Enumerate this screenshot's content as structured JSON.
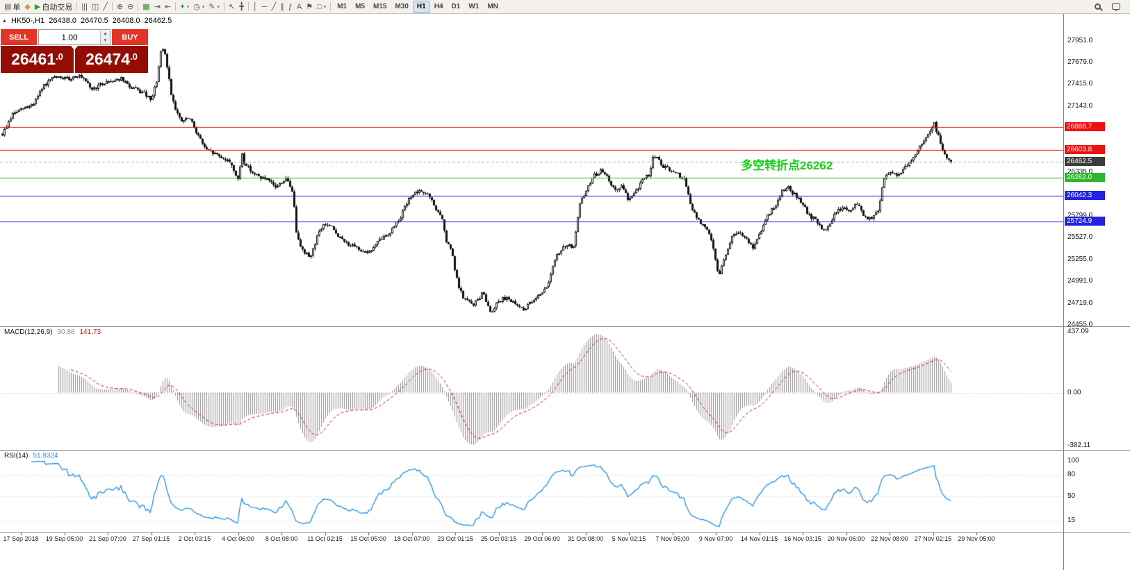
{
  "toolbar": {
    "left_items": [
      {
        "name": "new-order-button",
        "icon": "order-ticket",
        "label": "单"
      },
      {
        "name": "charts-button",
        "icon": "layers",
        "color": "#c9a227"
      },
      {
        "name": "autotrading-button",
        "icon": "play",
        "color": "#1fa51f",
        "label": "自动交易"
      },
      {
        "sep": true
      },
      {
        "name": "bar-chart-button",
        "icon": "bars-chart"
      },
      {
        "name": "candlestick-chart-button",
        "icon": "candles-chart"
      },
      {
        "name": "line-chart-button",
        "icon": "line-chart"
      },
      {
        "sep": true
      },
      {
        "name": "zoom-in-button",
        "icon": "zoom-in"
      },
      {
        "name": "zoom-out-button",
        "icon": "zoom-out"
      },
      {
        "sep": true
      },
      {
        "name": "tile-windows-button",
        "icon": "tile-windows",
        "color": "#2e8b2e"
      },
      {
        "name": "auto-scroll-button",
        "icon": "auto-scroll"
      },
      {
        "name": "chart-shift-button",
        "icon": "chart-shift"
      },
      {
        "sep": true
      },
      {
        "name": "new-chart-button",
        "icon": "new-chart",
        "color": "#1fa51f",
        "dropdown": true
      },
      {
        "name": "period-button",
        "icon": "period",
        "dropdown": true
      },
      {
        "name": "template-button",
        "icon": "template",
        "dropdown": true
      },
      {
        "sep": true
      },
      {
        "name": "cursor-button",
        "icon": "cursor"
      },
      {
        "name": "crosshair-button",
        "icon": "crosshair"
      },
      {
        "sep": true
      },
      {
        "name": "vertical-line-button",
        "icon": "vertical-line"
      },
      {
        "name": "horizontal-line-button",
        "icon": "horizontal-line"
      },
      {
        "name": "trendline-button",
        "icon": "trendline"
      },
      {
        "name": "channel-button",
        "icon": "channel"
      },
      {
        "name": "fibonacci-button",
        "icon": "fibonacci"
      },
      {
        "name": "text-button",
        "icon": "text"
      },
      {
        "name": "text-label-button",
        "icon": "text-label"
      },
      {
        "name": "shapes-button",
        "icon": "shapes",
        "dropdown": true
      },
      {
        "sep": true
      }
    ],
    "timeframes": [
      {
        "name": "timeframe-m1",
        "label": "M1"
      },
      {
        "name": "timeframe-m5",
        "label": "M5"
      },
      {
        "name": "timeframe-m15",
        "label": "M15"
      },
      {
        "name": "timeframe-m30",
        "label": "M30"
      },
      {
        "name": "timeframe-h1",
        "label": "H1",
        "active": true
      },
      {
        "name": "timeframe-h4",
        "label": "H4"
      },
      {
        "name": "timeframe-d1",
        "label": "D1"
      },
      {
        "name": "timeframe-w1",
        "label": "W1"
      },
      {
        "name": "timeframe-mn",
        "label": "MN"
      }
    ],
    "right_items": [
      {
        "name": "search-button",
        "icon": "magnifier"
      },
      {
        "name": "community-button",
        "icon": "chat-bubble"
      }
    ]
  },
  "chart_header": {
    "symbol": "HK50-,H1",
    "open": "26438.0",
    "high": "26470.5",
    "low": "26408.0",
    "close": "26462.5"
  },
  "trade_panel": {
    "sell_label": "SELL",
    "buy_label": "BUY",
    "volume": "1.00",
    "sell_price_int": "26461",
    "sell_price_frac": ".0",
    "buy_price_int": "26474",
    "buy_price_frac": ".0"
  },
  "annotation": {
    "text": "多空转折点26262",
    "color": "#16d016"
  },
  "chart_data": {
    "type": "candlestick",
    "symbol": "HK50-,H1",
    "timeframe": "H1",
    "price_axis": {
      "labels": [
        "27951.0",
        "27679.0",
        "27415.0",
        "27143.0",
        "26335.0",
        "25799.0",
        "25527.0",
        "25255.0",
        "24991.0",
        "24719.0",
        "24455.0"
      ],
      "range_top": 28280,
      "range_bottom": 24438
    },
    "levels": [
      {
        "price": 26888.7,
        "label": "26888.7",
        "color": "#ee1111"
      },
      {
        "price": 26603.8,
        "label": "26603.8",
        "color": "#ee1111"
      },
      {
        "price": 26262.0,
        "label": "26262.0",
        "color": "#2db52d"
      },
      {
        "price": 26042.3,
        "label": "26042.3",
        "color": "#2424e0"
      },
      {
        "price": 25724.9,
        "label": "25724.9",
        "color": "#2424e0"
      }
    ],
    "current_price": {
      "price": 26462.5,
      "label": "26462.5",
      "color": "#3c3c3c"
    },
    "candle_count": 456,
    "path_anchors": [
      [
        0,
        26800
      ],
      [
        0.011,
        27050
      ],
      [
        0.033,
        27180
      ],
      [
        0.044,
        27400
      ],
      [
        0.055,
        27500
      ],
      [
        0.07,
        27480
      ],
      [
        0.08,
        27530
      ],
      [
        0.095,
        27350
      ],
      [
        0.11,
        27450
      ],
      [
        0.125,
        27480
      ],
      [
        0.135,
        27380
      ],
      [
        0.15,
        27300
      ],
      [
        0.157,
        27200
      ],
      [
        0.163,
        27480
      ],
      [
        0.168,
        27870
      ],
      [
        0.172,
        27750
      ],
      [
        0.178,
        27300
      ],
      [
        0.183,
        27100
      ],
      [
        0.188,
        26950
      ],
      [
        0.197,
        27000
      ],
      [
        0.208,
        26750
      ],
      [
        0.215,
        26600
      ],
      [
        0.226,
        26550
      ],
      [
        0.241,
        26450
      ],
      [
        0.249,
        26200
      ],
      [
        0.252,
        26600
      ],
      [
        0.255,
        26450
      ],
      [
        0.266,
        26300
      ],
      [
        0.277,
        26250
      ],
      [
        0.288,
        26150
      ],
      [
        0.299,
        26250
      ],
      [
        0.306,
        26100
      ],
      [
        0.31,
        25600
      ],
      [
        0.317,
        25350
      ],
      [
        0.325,
        25300
      ],
      [
        0.332,
        25550
      ],
      [
        0.339,
        25700
      ],
      [
        0.347,
        25650
      ],
      [
        0.358,
        25500
      ],
      [
        0.372,
        25400
      ],
      [
        0.387,
        25350
      ],
      [
        0.398,
        25500
      ],
      [
        0.409,
        25600
      ],
      [
        0.42,
        25800
      ],
      [
        0.431,
        26050
      ],
      [
        0.442,
        26100
      ],
      [
        0.449,
        26050
      ],
      [
        0.456,
        25900
      ],
      [
        0.464,
        25750
      ],
      [
        0.467,
        25500
      ],
      [
        0.474,
        25350
      ],
      [
        0.478,
        25050
      ],
      [
        0.485,
        24800
      ],
      [
        0.496,
        24700
      ],
      [
        0.507,
        24850
      ],
      [
        0.515,
        24600
      ],
      [
        0.522,
        24750
      ],
      [
        0.533,
        24800
      ],
      [
        0.54,
        24700
      ],
      [
        0.551,
        24650
      ],
      [
        0.562,
        24800
      ],
      [
        0.573,
        24900
      ],
      [
        0.584,
        25300
      ],
      [
        0.595,
        25450
      ],
      [
        0.602,
        25400
      ],
      [
        0.609,
        25950
      ],
      [
        0.617,
        26150
      ],
      [
        0.624,
        26300
      ],
      [
        0.631,
        26350
      ],
      [
        0.639,
        26250
      ],
      [
        0.646,
        26100
      ],
      [
        0.653,
        26150
      ],
      [
        0.66,
        26000
      ],
      [
        0.668,
        26100
      ],
      [
        0.675,
        26250
      ],
      [
        0.682,
        26300
      ],
      [
        0.686,
        26550
      ],
      [
        0.69,
        26500
      ],
      [
        0.697,
        26400
      ],
      [
        0.704,
        26350
      ],
      [
        0.712,
        26300
      ],
      [
        0.719,
        26250
      ],
      [
        0.726,
        25900
      ],
      [
        0.733,
        25750
      ],
      [
        0.741,
        25650
      ],
      [
        0.748,
        25500
      ],
      [
        0.755,
        25050
      ],
      [
        0.763,
        25350
      ],
      [
        0.77,
        25550
      ],
      [
        0.777,
        25600
      ],
      [
        0.784,
        25500
      ],
      [
        0.792,
        25400
      ],
      [
        0.799,
        25600
      ],
      [
        0.806,
        25800
      ],
      [
        0.814,
        25900
      ],
      [
        0.821,
        26100
      ],
      [
        0.828,
        26150
      ],
      [
        0.836,
        26050
      ],
      [
        0.843,
        25950
      ],
      [
        0.85,
        25800
      ],
      [
        0.857,
        25750
      ],
      [
        0.865,
        25600
      ],
      [
        0.872,
        25700
      ],
      [
        0.879,
        25850
      ],
      [
        0.887,
        25900
      ],
      [
        0.894,
        25850
      ],
      [
        0.901,
        25950
      ],
      [
        0.908,
        25800
      ],
      [
        0.916,
        25750
      ],
      [
        0.923,
        25850
      ],
      [
        0.93,
        26300
      ],
      [
        0.938,
        26350
      ],
      [
        0.945,
        26300
      ],
      [
        0.952,
        26400
      ],
      [
        0.959,
        26500
      ],
      [
        0.967,
        26650
      ],
      [
        0.974,
        26750
      ],
      [
        0.982,
        26950
      ],
      [
        0.985,
        26820
      ],
      [
        0.989,
        26700
      ],
      [
        0.993,
        26550
      ],
      [
        1,
        26462.5
      ]
    ],
    "macd": {
      "label": "MACD(12,26,9)",
      "main_value": "90.88",
      "signal_value": "141.73",
      "axis_labels": [
        "437.09",
        "0.00",
        "-382.11"
      ],
      "range": [
        -382.11,
        437.09
      ],
      "histogram_color": "#909090",
      "signal_color": "#e01010"
    },
    "rsi": {
      "label": "RSI(14)",
      "value": "51.9324",
      "axis_labels": [
        "100",
        "80",
        "50",
        "15"
      ],
      "range": [
        0,
        100
      ],
      "level_lines": [
        80,
        50,
        15
      ],
      "line_color": "#2090e8"
    },
    "time_axis": {
      "labels": [
        "17 Sep 2018",
        "19 Sep 05:00",
        "21 Sep 07:00",
        "27 Sep 01:15",
        "2 Oct 03:15",
        "4 Oct 06:00",
        "8 Oct 08:00",
        "11 Oct 02:15",
        "15 Oct 05:00",
        "18 Oct 07:00",
        "23 Oct 01:15",
        "25 Oct 03:15",
        "29 Oct 06:00",
        "31 Oct 08:00",
        "5 Nov 02:15",
        "7 Nov 05:00",
        "9 Nov 07:00",
        "14 Nov 01:15",
        "16 Nov 03:15",
        "20 Nov 06:00",
        "22 Nov 08:00",
        "27 Nov 02:15",
        "29 Nov 05:00"
      ]
    }
  }
}
